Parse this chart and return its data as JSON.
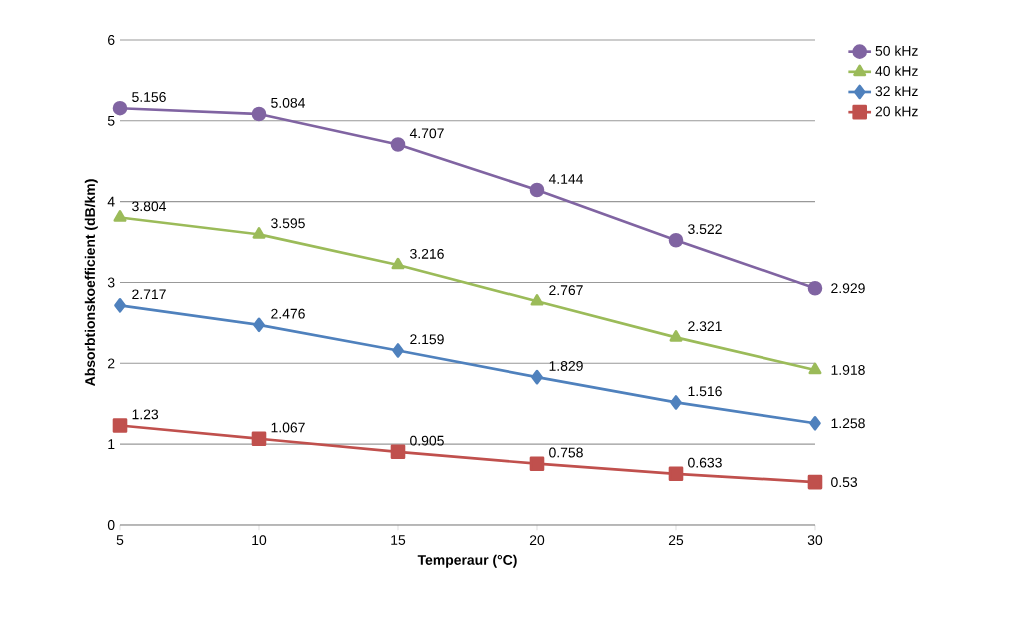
{
  "chart_data": {
    "type": "line",
    "xlabel": "Temperaur  (°C)",
    "ylabel": "Absorbtionskoefficient (dB/km)",
    "categories": [
      "5",
      "10",
      "15",
      "20",
      "25",
      "30"
    ],
    "series": [
      {
        "name": "50 kHz",
        "color": "#8064a2",
        "marker": "circle",
        "values": [
          5.156,
          5.084,
          4.707,
          4.144,
          3.522,
          2.929
        ]
      },
      {
        "name": "40 kHz",
        "color": "#9bbb59",
        "marker": "triangle",
        "values": [
          3.804,
          3.595,
          3.216,
          2.767,
          2.321,
          1.918
        ]
      },
      {
        "name": "32 kHz",
        "color": "#4f81bd",
        "marker": "diamond",
        "values": [
          2.717,
          2.476,
          2.159,
          1.829,
          1.516,
          1.258
        ]
      },
      {
        "name": "20 kHz",
        "color": "#c0504d",
        "marker": "square",
        "values": [
          1.23,
          1.067,
          0.905,
          0.758,
          0.633,
          0.53
        ]
      }
    ],
    "ylim": [
      0,
      6
    ],
    "yticks": [
      0,
      1,
      2,
      3,
      4,
      5,
      6
    ],
    "grid": "y",
    "legend": "top right",
    "data_labels": true
  }
}
